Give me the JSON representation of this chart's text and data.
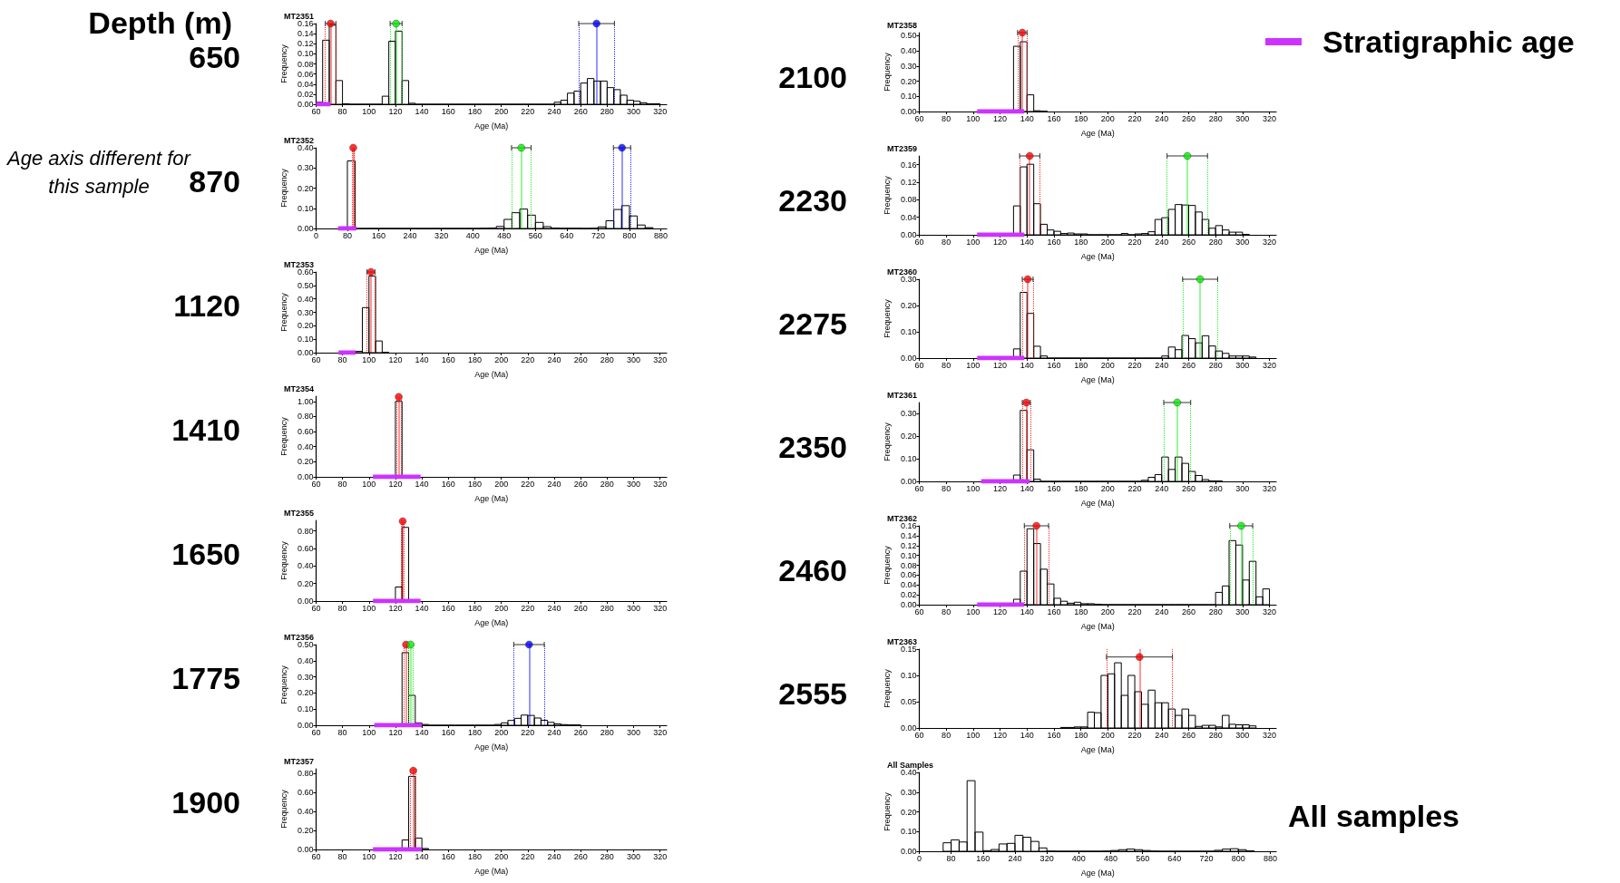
{
  "chart_data": [
    {
      "type": "histogram",
      "title": "MT2351",
      "xlabel": "Age (Ma)",
      "ylabel": "Frequency",
      "color": "#000000",
      "annotations": [
        "650",
        "Depth (m)"
      ],
      "bins": [
        60,
        65,
        70,
        75,
        80,
        85,
        90,
        95,
        100,
        105,
        110,
        115,
        120,
        125,
        130,
        135,
        140,
        145,
        150,
        155,
        160,
        165,
        170,
        175,
        180,
        185,
        190,
        195,
        200,
        205,
        210,
        215,
        220,
        225,
        230,
        235,
        240,
        245,
        250,
        255,
        260,
        265,
        270,
        275,
        280,
        285,
        290,
        295,
        300,
        305,
        310,
        315,
        320
      ],
      "values": [
        0.004,
        0.127,
        0.157,
        0.047,
        0.001,
        0,
        0,
        0,
        0,
        0,
        0.016,
        0.125,
        0.145,
        0.047,
        0.002,
        0,
        0,
        0,
        0,
        0,
        0,
        0,
        0,
        0,
        0,
        0,
        0,
        0,
        0,
        0,
        0,
        0,
        0,
        0,
        0,
        0,
        0.004,
        0.008,
        0.022,
        0.026,
        0.042,
        0.051,
        0.046,
        0.046,
        0.033,
        0.029,
        0.018,
        0.008,
        0.006,
        0.003,
        0.001,
        0.001
      ],
      "series": [
        {
          "type": "scatter",
          "color": "#ff0000",
          "x": [
            71
          ],
          "values": [
            0.16
          ],
          "xerrors": [
            4
          ]
        },
        {
          "type": "scatter",
          "color": "#00ee00",
          "x": [
            120.5
          ],
          "values": [
            0.16
          ],
          "xerrors": [
            4.5
          ]
        },
        {
          "type": "scatter",
          "color": "#0000ff",
          "x": [
            272
          ],
          "values": [
            0.16
          ],
          "xerrors": [
            13.5
          ]
        },
        {
          "type": "line",
          "color": "#cc33ff",
          "x": [
            60,
            71
          ],
          "values": [
            0,
            0
          ]
        }
      ],
      "ref_lines": [
        {
          "axis": "x",
          "value": 71,
          "color": "#ff0000",
          "line_style": "solid"
        },
        {
          "axis": "x",
          "value": 67,
          "color": "#ff0000",
          "line_style": "dotted"
        },
        {
          "axis": "x",
          "value": 75,
          "color": "#ff0000",
          "line_style": "dotted"
        },
        {
          "axis": "x",
          "value": 120.5,
          "color": "#00ee00",
          "line_style": "solid"
        },
        {
          "axis": "x",
          "value": 116,
          "color": "#00ee00",
          "line_style": "dotted"
        },
        {
          "axis": "x",
          "value": 125,
          "color": "#00ee00",
          "line_style": "dotted"
        },
        {
          "axis": "x",
          "value": 272,
          "color": "#0000ff",
          "line_style": "solid"
        },
        {
          "axis": "x",
          "value": 258.5,
          "color": "#0000ff",
          "line_style": "dotted"
        },
        {
          "axis": "x",
          "value": 285.5,
          "color": "#0000ff",
          "line_style": "dotted"
        }
      ],
      "xlim": [
        60,
        325
      ],
      "xticks": [
        60,
        80,
        100,
        120,
        140,
        160,
        180,
        200,
        220,
        240,
        260,
        280,
        300,
        320
      ],
      "ylim": [
        0,
        0.16
      ],
      "yticks": [
        {
          "value": 0,
          "label": "0.00"
        },
        0.02,
        0.04,
        0.06,
        0.08,
        {
          "value": 0.1,
          "label": "0.10"
        },
        0.12,
        0.14,
        0.16
      ]
    },
    {
      "type": "histogram",
      "title": "MT2352",
      "xlabel": "Age (Ma)",
      "ylabel": "Frequency",
      "color": "#000000",
      "annotations": [
        "870",
        "Age axis different for this sample"
      ],
      "bins": [
        80,
        100,
        120,
        140,
        160,
        180,
        200,
        220,
        240,
        260,
        280,
        300,
        320,
        340,
        360,
        380,
        400,
        420,
        440,
        460,
        480,
        500,
        520,
        540,
        560,
        580,
        600,
        620,
        640,
        660,
        680,
        700,
        720,
        740,
        760,
        780,
        800,
        820,
        840,
        860
      ],
      "values": [
        0.335,
        0,
        0,
        0,
        0,
        0,
        0,
        0,
        0,
        0,
        0,
        0,
        0,
        0,
        0,
        0,
        0,
        0.001,
        0.002,
        0.01,
        0.045,
        0.078,
        0.096,
        0.066,
        0.03,
        0.009,
        0.002,
        0.001,
        0.001,
        0.001,
        0,
        0.001,
        0.008,
        0.038,
        0.094,
        0.113,
        0.062,
        0.017,
        0.004
      ],
      "series": [
        {
          "type": "scatter",
          "color": "#ff0000",
          "x": [
            95
          ],
          "values": [
            0.4
          ]
        },
        {
          "type": "scatter",
          "color": "#00ee00",
          "x": [
            524
          ],
          "values": [
            0.4
          ],
          "xerrors": [
            25
          ]
        },
        {
          "type": "scatter",
          "color": "#0000ff",
          "x": [
            781
          ],
          "values": [
            0.4
          ],
          "xerrors": [
            22
          ]
        },
        {
          "type": "line",
          "color": "#cc33ff",
          "x": [
            56,
            103
          ],
          "values": [
            0,
            0
          ]
        }
      ],
      "ref_lines": [
        {
          "axis": "x",
          "value": 95,
          "color": "#ff0000",
          "line_style": "solid"
        },
        {
          "axis": "x",
          "value": 92,
          "color": "#ff0000",
          "line_style": "dotted"
        },
        {
          "axis": "x",
          "value": 98,
          "color": "#ff0000",
          "line_style": "dotted"
        },
        {
          "axis": "x",
          "value": 524,
          "color": "#00ee00",
          "line_style": "solid"
        },
        {
          "axis": "x",
          "value": 499,
          "color": "#00ee00",
          "line_style": "dotted"
        },
        {
          "axis": "x",
          "value": 549,
          "color": "#00ee00",
          "line_style": "dotted"
        },
        {
          "axis": "x",
          "value": 781,
          "color": "#0000ff",
          "line_style": "solid"
        },
        {
          "axis": "x",
          "value": 759,
          "color": "#0000ff",
          "line_style": "dotted"
        },
        {
          "axis": "x",
          "value": 803,
          "color": "#0000ff",
          "line_style": "dotted"
        }
      ],
      "xlim": [
        0,
        895
      ],
      "xticks": [
        0,
        80,
        160,
        240,
        320,
        400,
        480,
        560,
        640,
        720,
        800,
        880
      ],
      "ylim": [
        0,
        0.4
      ],
      "yticks": [
        {
          "value": 0,
          "label": "0.00"
        },
        {
          "value": 0.1,
          "label": "0.10"
        },
        {
          "value": 0.2,
          "label": "0.20"
        },
        {
          "value": 0.3,
          "label": "0.30"
        },
        {
          "value": 0.4,
          "label": "0.40"
        }
      ]
    },
    {
      "type": "histogram",
      "title": "MT2353",
      "xlabel": "Age (Ma)",
      "ylabel": "Frequency",
      "color": "#000000",
      "annotations": [
        "1120"
      ],
      "bins": [
        90,
        95,
        100,
        105,
        110,
        115
      ],
      "values": [
        0.01,
        0.335,
        0.57,
        0.087,
        0.002
      ],
      "series": [
        {
          "type": "scatter",
          "color": "#ff0000",
          "x": [
            101.5
          ],
          "values": [
            0.6
          ],
          "xerrors": [
            3
          ]
        },
        {
          "type": "line",
          "color": "#cc33ff",
          "x": [
            77,
            90
          ],
          "values": [
            0,
            0
          ]
        }
      ],
      "ref_lines": [
        {
          "axis": "x",
          "value": 101.5,
          "color": "#ff0000",
          "line_style": "solid"
        },
        {
          "axis": "x",
          "value": 98.5,
          "color": "#ff0000",
          "line_style": "dotted"
        },
        {
          "axis": "x",
          "value": 104.5,
          "color": "#ff0000",
          "line_style": "dotted"
        }
      ],
      "xlim": [
        60,
        325
      ],
      "xticks": [
        60,
        80,
        100,
        120,
        140,
        160,
        180,
        200,
        220,
        240,
        260,
        280,
        300,
        320
      ],
      "ylim": [
        0,
        0.6
      ],
      "yticks": [
        {
          "value": 0,
          "label": "0.00"
        },
        {
          "value": 0.1,
          "label": "0.10"
        },
        {
          "value": 0.2,
          "label": "0.20"
        },
        {
          "value": 0.3,
          "label": "0.30"
        },
        {
          "value": 0.4,
          "label": "0.40"
        },
        {
          "value": 0.5,
          "label": "0.50"
        },
        {
          "value": 0.6,
          "label": "0.60"
        }
      ]
    },
    {
      "type": "histogram",
      "title": "MT2354",
      "xlabel": "Age (Ma)",
      "ylabel": "Frequency",
      "color": "#000000",
      "annotations": [
        "1410"
      ],
      "bins": [
        120,
        125
      ],
      "values": [
        1.0
      ],
      "series": [
        {
          "type": "scatter",
          "color": "#ff0000",
          "x": [
            122.5
          ],
          "values": [
            1.06
          ]
        },
        {
          "type": "line",
          "color": "#cc33ff",
          "x": [
            103,
            139
          ],
          "values": [
            0,
            0
          ]
        }
      ],
      "ref_lines": [
        {
          "axis": "x",
          "value": 122.5,
          "color": "#ff0000",
          "line_style": "solid"
        },
        {
          "axis": "x",
          "value": 121,
          "color": "#ff0000",
          "line_style": "dotted"
        },
        {
          "axis": "x",
          "value": 124,
          "color": "#ff0000",
          "line_style": "dotted"
        }
      ],
      "xlim": [
        60,
        325
      ],
      "xticks": [
        60,
        80,
        100,
        120,
        140,
        160,
        180,
        200,
        220,
        240,
        260,
        280,
        300,
        320
      ],
      "ylim": [
        0,
        1.07
      ],
      "yticks": [
        {
          "value": 0,
          "label": "0.00"
        },
        {
          "value": 0.2,
          "label": "0.20"
        },
        {
          "value": 0.4,
          "label": "0.40"
        },
        {
          "value": 0.6,
          "label": "0.60"
        },
        {
          "value": 0.8,
          "label": "0.80"
        },
        {
          "value": 1,
          "label": "1.00"
        }
      ]
    },
    {
      "type": "histogram",
      "title": "MT2355",
      "xlabel": "Age (Ma)",
      "ylabel": "Frequency",
      "color": "#000000",
      "annotations": [
        "1650"
      ],
      "bins": [
        120,
        125,
        130
      ],
      "values": [
        0.16,
        0.84
      ],
      "series": [
        {
          "type": "scatter",
          "color": "#ff0000",
          "x": [
            125.5
          ],
          "values": [
            0.91
          ]
        },
        {
          "type": "line",
          "color": "#cc33ff",
          "x": [
            103,
            139
          ],
          "values": [
            0,
            0
          ]
        }
      ],
      "ref_lines": [
        {
          "axis": "x",
          "value": 125.5,
          "color": "#ff0000",
          "line_style": "solid"
        },
        {
          "axis": "x",
          "value": 124.5,
          "color": "#ff0000",
          "line_style": "dotted"
        },
        {
          "axis": "x",
          "value": 126.5,
          "color": "#ff0000",
          "line_style": "dotted"
        }
      ],
      "xlim": [
        60,
        325
      ],
      "xticks": [
        60,
        80,
        100,
        120,
        140,
        160,
        180,
        200,
        220,
        240,
        260,
        280,
        300,
        320
      ],
      "ylim": [
        0,
        0.92
      ],
      "yticks": [
        {
          "value": 0,
          "label": "0.00"
        },
        {
          "value": 0.2,
          "label": "0.20"
        },
        {
          "value": 0.4,
          "label": "0.40"
        },
        {
          "value": 0.6,
          "label": "0.60"
        },
        {
          "value": 0.8,
          "label": "0.80"
        }
      ]
    },
    {
      "type": "histogram",
      "title": "MT2356",
      "xlabel": "Age (Ma)",
      "ylabel": "Frequency",
      "color": "#000000",
      "annotations": [
        "1775"
      ],
      "bins": [
        125,
        130,
        135,
        140,
        145,
        150,
        155,
        160,
        165,
        170,
        175,
        180,
        185,
        190,
        195,
        200,
        205,
        210,
        215,
        220,
        225,
        230,
        235,
        240,
        245,
        250,
        255,
        260
      ],
      "values": [
        0.45,
        0.185,
        0.015,
        0.005,
        0,
        0,
        0,
        0,
        0,
        0,
        0,
        0,
        0,
        0,
        0.005,
        0.015,
        0.03,
        0.043,
        0.063,
        0.061,
        0.045,
        0.031,
        0.018,
        0.009,
        0.004,
        0.002,
        0.002
      ],
      "series": [
        {
          "type": "scatter",
          "color": "#ff0000",
          "x": [
            128
          ],
          "values": [
            0.5
          ]
        },
        {
          "type": "scatter",
          "color": "#00ee00",
          "x": [
            131.5
          ],
          "values": [
            0.5
          ]
        },
        {
          "type": "scatter",
          "color": "#0000ff",
          "x": [
            221
          ],
          "values": [
            0.5
          ],
          "xerrors": [
            11.5
          ]
        },
        {
          "type": "line",
          "color": "#cc33ff",
          "x": [
            104,
            140
          ],
          "values": [
            0,
            0
          ]
        }
      ],
      "ref_lines": [
        {
          "axis": "x",
          "value": 128,
          "color": "#ff0000",
          "line_style": "solid"
        },
        {
          "axis": "x",
          "value": 126.5,
          "color": "#ff0000",
          "line_style": "dotted"
        },
        {
          "axis": "x",
          "value": 129.5,
          "color": "#ff0000",
          "line_style": "dotted"
        },
        {
          "axis": "x",
          "value": 131.5,
          "color": "#00ee00",
          "line_style": "solid"
        },
        {
          "axis": "x",
          "value": 130,
          "color": "#00ee00",
          "line_style": "dotted"
        },
        {
          "axis": "x",
          "value": 133,
          "color": "#00ee00",
          "line_style": "dotted"
        },
        {
          "axis": "x",
          "value": 221,
          "color": "#0000ff",
          "line_style": "solid"
        },
        {
          "axis": "x",
          "value": 209.5,
          "color": "#0000ff",
          "line_style": "dotted"
        },
        {
          "axis": "x",
          "value": 232.5,
          "color": "#0000ff",
          "line_style": "dotted"
        }
      ],
      "xlim": [
        60,
        325
      ],
      "xticks": [
        60,
        80,
        100,
        120,
        140,
        160,
        180,
        200,
        220,
        240,
        260,
        280,
        300,
        320
      ],
      "ylim": [
        0,
        0.5
      ],
      "yticks": [
        {
          "value": 0,
          "label": "0.00"
        },
        {
          "value": 0.1,
          "label": "0.10"
        },
        {
          "value": 0.2,
          "label": "0.20"
        },
        {
          "value": 0.3,
          "label": "0.30"
        },
        {
          "value": 0.4,
          "label": "0.40"
        },
        {
          "value": 0.5,
          "label": "0.50"
        }
      ]
    },
    {
      "type": "histogram",
      "title": "MT2357",
      "xlabel": "Age (Ma)",
      "ylabel": "Frequency",
      "color": "#000000",
      "annotations": [
        "1900"
      ],
      "bins": [
        125,
        130,
        135,
        140,
        145
      ],
      "values": [
        0.1,
        0.77,
        0.12,
        0.01
      ],
      "series": [
        {
          "type": "scatter",
          "color": "#ff0000",
          "x": [
            133.5
          ],
          "values": [
            0.83
          ]
        },
        {
          "type": "line",
          "color": "#cc33ff",
          "x": [
            103,
            140
          ],
          "values": [
            0,
            0
          ]
        }
      ],
      "ref_lines": [
        {
          "axis": "x",
          "value": 133.5,
          "color": "#ff0000",
          "line_style": "solid"
        },
        {
          "axis": "x",
          "value": 131.5,
          "color": "#ff0000",
          "line_style": "dotted"
        },
        {
          "axis": "x",
          "value": 135.5,
          "color": "#ff0000",
          "line_style": "dotted"
        }
      ],
      "xlim": [
        60,
        325
      ],
      "xticks": [
        60,
        80,
        100,
        120,
        140,
        160,
        180,
        200,
        220,
        240,
        260,
        280,
        300,
        320
      ],
      "ylim": [
        0,
        0.85
      ],
      "yticks": [
        {
          "value": 0,
          "label": "0.00"
        },
        {
          "value": 0.2,
          "label": "0.20"
        },
        {
          "value": 0.4,
          "label": "0.40"
        },
        {
          "value": 0.6,
          "label": "0.60"
        },
        {
          "value": 0.8,
          "label": "0.80"
        }
      ]
    },
    {
      "type": "histogram",
      "title": "MT2358",
      "xlabel": "Age (Ma)",
      "ylabel": "Frequency",
      "color": "#000000",
      "annotations": [
        "2100"
      ],
      "bins": [
        130,
        135,
        140,
        145,
        150,
        155
      ],
      "values": [
        0.43,
        0.46,
        0.11,
        0.005,
        0.002
      ],
      "series": [
        {
          "type": "scatter",
          "color": "#ff0000",
          "x": [
            136.5
          ],
          "values": [
            0.52
          ],
          "xerrors": [
            3.5
          ]
        },
        {
          "type": "line",
          "color": "#cc33ff",
          "x": [
            103,
            138
          ],
          "values": [
            0,
            0
          ]
        }
      ],
      "ref_lines": [
        {
          "axis": "x",
          "value": 136.5,
          "color": "#ff0000",
          "line_style": "solid"
        },
        {
          "axis": "x",
          "value": 133,
          "color": "#ff0000",
          "line_style": "dotted"
        },
        {
          "axis": "x",
          "value": 140,
          "color": "#ff0000",
          "line_style": "dotted"
        }
      ],
      "xlim": [
        60,
        325
      ],
      "xticks": [
        60,
        80,
        100,
        120,
        140,
        160,
        180,
        200,
        220,
        240,
        260,
        280,
        300,
        320
      ],
      "ylim": [
        0,
        0.52
      ],
      "yticks": [
        {
          "value": 0,
          "label": "0.00"
        },
        {
          "value": 0.1,
          "label": "0.10"
        },
        {
          "value": 0.2,
          "label": "0.20"
        },
        {
          "value": 0.3,
          "label": "0.30"
        },
        {
          "value": 0.4,
          "label": "0.40"
        },
        {
          "value": 0.5,
          "label": "0.50"
        }
      ]
    },
    {
      "type": "histogram",
      "title": "MT2359",
      "xlabel": "Age (Ma)",
      "ylabel": "Frequency",
      "color": "#000000",
      "annotations": [
        "2230"
      ],
      "bins": [
        130,
        135,
        140,
        145,
        150,
        155,
        160,
        165,
        170,
        175,
        180,
        185,
        190,
        195,
        200,
        205,
        210,
        215,
        220,
        225,
        230,
        235,
        240,
        245,
        250,
        255,
        260,
        265,
        270,
        275,
        280,
        285,
        290,
        295,
        300,
        305
      ],
      "values": [
        0.066,
        0.155,
        0.161,
        0.071,
        0.024,
        0.011,
        0.008,
        0.003,
        0.004,
        0.002,
        0.002,
        0,
        0,
        0,
        0,
        0,
        0.003,
        0,
        0.002,
        0.003,
        0.007,
        0.035,
        0.039,
        0.058,
        0.069,
        0.068,
        0.067,
        0.052,
        0.035,
        0.015,
        0.021,
        0.011,
        0.006,
        0.006,
        0.001
      ],
      "series": [
        {
          "type": "scatter",
          "color": "#ff0000",
          "x": [
            142
          ],
          "values": [
            0.18
          ],
          "xerrors": [
            7.5
          ]
        },
        {
          "type": "scatter",
          "color": "#00ee00",
          "x": [
            259
          ],
          "values": [
            0.18
          ],
          "xerrors": [
            15
          ]
        },
        {
          "type": "line",
          "color": "#cc33ff",
          "x": [
            103,
            138
          ],
          "values": [
            0,
            0
          ]
        }
      ],
      "ref_lines": [
        {
          "axis": "x",
          "value": 142,
          "color": "#ff0000",
          "line_style": "solid"
        },
        {
          "axis": "x",
          "value": 134.5,
          "color": "#ff0000",
          "line_style": "dotted"
        },
        {
          "axis": "x",
          "value": 149.5,
          "color": "#ff0000",
          "line_style": "dotted"
        },
        {
          "axis": "x",
          "value": 259,
          "color": "#00ee00",
          "line_style": "solid"
        },
        {
          "axis": "x",
          "value": 244,
          "color": "#00ee00",
          "line_style": "dotted"
        },
        {
          "axis": "x",
          "value": 274,
          "color": "#00ee00",
          "line_style": "dotted"
        }
      ],
      "xlim": [
        60,
        325
      ],
      "xticks": [
        60,
        80,
        100,
        120,
        140,
        160,
        180,
        200,
        220,
        240,
        260,
        280,
        300,
        320
      ],
      "ylim": [
        0,
        0.18
      ],
      "yticks": [
        {
          "value": 0,
          "label": "0.00"
        },
        0.04,
        0.08,
        0.12,
        0.16
      ]
    },
    {
      "type": "histogram",
      "title": "MT2360",
      "xlabel": "Age (Ma)",
      "ylabel": "Frequency",
      "color": "#000000",
      "annotations": [
        "2275"
      ],
      "bins": [
        130,
        135,
        140,
        145,
        150,
        155,
        160,
        165,
        170,
        175,
        180,
        185,
        190,
        195,
        200,
        205,
        210,
        215,
        220,
        225,
        230,
        235,
        240,
        245,
        250,
        255,
        260,
        265,
        270,
        275,
        280,
        285,
        290,
        295,
        300,
        305,
        310
      ],
      "values": [
        0.035,
        0.25,
        0.17,
        0.045,
        0.008,
        0,
        0,
        0,
        0,
        0,
        0,
        0,
        0,
        0,
        0,
        0,
        0,
        0,
        0,
        0,
        0,
        0,
        0.008,
        0.042,
        0.032,
        0.086,
        0.074,
        0.058,
        0.085,
        0.046,
        0.027,
        0.018,
        0.008,
        0.008,
        0.008,
        0.004
      ],
      "series": [
        {
          "type": "scatter",
          "color": "#ff0000",
          "x": [
            140.5
          ],
          "values": [
            0.3
          ],
          "xerrors": [
            4
          ]
        },
        {
          "type": "scatter",
          "color": "#00ee00",
          "x": [
            268.5
          ],
          "values": [
            0.3
          ],
          "xerrors": [
            13
          ]
        },
        {
          "type": "line",
          "color": "#cc33ff",
          "x": [
            103,
            138
          ],
          "values": [
            0,
            0
          ]
        }
      ],
      "ref_lines": [
        {
          "axis": "x",
          "value": 140.5,
          "color": "#ff0000",
          "line_style": "solid"
        },
        {
          "axis": "x",
          "value": 136.5,
          "color": "#ff0000",
          "line_style": "dotted"
        },
        {
          "axis": "x",
          "value": 144.5,
          "color": "#ff0000",
          "line_style": "dotted"
        },
        {
          "axis": "x",
          "value": 268.5,
          "color": "#00ee00",
          "line_style": "solid"
        },
        {
          "axis": "x",
          "value": 255.5,
          "color": "#00ee00",
          "line_style": "dotted"
        },
        {
          "axis": "x",
          "value": 281.5,
          "color": "#00ee00",
          "line_style": "dotted"
        }
      ],
      "xlim": [
        60,
        325
      ],
      "xticks": [
        60,
        80,
        100,
        120,
        140,
        160,
        180,
        200,
        220,
        240,
        260,
        280,
        300,
        320
      ],
      "ylim": [
        0,
        0.3
      ],
      "yticks": [
        {
          "value": 0,
          "label": "0.00"
        },
        {
          "value": 0.1,
          "label": "0.10"
        },
        {
          "value": 0.2,
          "label": "0.20"
        },
        {
          "value": 0.3,
          "label": "0.30"
        }
      ]
    },
    {
      "type": "histogram",
      "title": "MT2361",
      "xlabel": "Age (Ma)",
      "ylabel": "Frequency",
      "color": "#000000",
      "annotations": [
        "2350"
      ],
      "bins": [
        130,
        135,
        140,
        145,
        150,
        155,
        160,
        165,
        170,
        175,
        180,
        185,
        190,
        195,
        200,
        205,
        210,
        215,
        220,
        225,
        230,
        235,
        240,
        245,
        250,
        255,
        260,
        265,
        270,
        275,
        280,
        285
      ],
      "values": [
        0.028,
        0.315,
        0.14,
        0.01,
        0,
        0,
        0,
        0,
        0,
        0,
        0,
        0,
        0,
        0,
        0,
        0,
        0,
        0,
        0,
        0.005,
        0.018,
        0.03,
        0.108,
        0.053,
        0.108,
        0.08,
        0.044,
        0.026,
        0.008,
        0.002,
        0.002
      ],
      "series": [
        {
          "type": "scatter",
          "color": "#ff0000",
          "x": [
            139.5
          ],
          "values": [
            0.35
          ],
          "xerrors": [
            3
          ]
        },
        {
          "type": "scatter",
          "color": "#00ee00",
          "x": [
            251.5
          ],
          "values": [
            0.35
          ],
          "xerrors": [
            10
          ]
        },
        {
          "type": "line",
          "color": "#cc33ff",
          "x": [
            106,
            142
          ],
          "values": [
            0,
            0
          ]
        }
      ],
      "ref_lines": [
        {
          "axis": "x",
          "value": 139.5,
          "color": "#ff0000",
          "line_style": "solid"
        },
        {
          "axis": "x",
          "value": 136.5,
          "color": "#ff0000",
          "line_style": "dotted"
        },
        {
          "axis": "x",
          "value": 142.5,
          "color": "#ff0000",
          "line_style": "dotted"
        },
        {
          "axis": "x",
          "value": 251.5,
          "color": "#00ee00",
          "line_style": "solid"
        },
        {
          "axis": "x",
          "value": 241.5,
          "color": "#00ee00",
          "line_style": "dotted"
        },
        {
          "axis": "x",
          "value": 261.5,
          "color": "#00ee00",
          "line_style": "dotted"
        }
      ],
      "xlim": [
        60,
        325
      ],
      "xticks": [
        60,
        80,
        100,
        120,
        140,
        160,
        180,
        200,
        220,
        240,
        260,
        280,
        300,
        320
      ],
      "ylim": [
        0,
        0.35
      ],
      "yticks": [
        {
          "value": 0,
          "label": "0.00"
        },
        {
          "value": 0.1,
          "label": "0.10"
        },
        {
          "value": 0.2,
          "label": "0.20"
        },
        {
          "value": 0.3,
          "label": "0.30"
        }
      ]
    },
    {
      "type": "histogram",
      "title": "MT2362",
      "xlabel": "Age (Ma)",
      "ylabel": "Frequency",
      "color": "#000000",
      "annotations": [
        "2460"
      ],
      "bins": [
        130,
        135,
        140,
        145,
        150,
        155,
        160,
        165,
        170,
        175,
        180,
        185,
        190,
        195,
        200,
        205,
        210,
        215,
        220,
        225,
        230,
        235,
        240,
        245,
        250,
        255,
        260,
        265,
        270,
        275,
        280,
        285,
        290,
        295,
        300,
        305,
        310,
        315,
        320
      ],
      "values": [
        0.011,
        0.068,
        0.154,
        0.124,
        0.072,
        0.042,
        0.013,
        0.007,
        0.003,
        0.005,
        0.002,
        0.002,
        0.001,
        0,
        0,
        0,
        0,
        0,
        0,
        0,
        0,
        0,
        0,
        0,
        0,
        0,
        0,
        0,
        0,
        0,
        0.025,
        0.038,
        0.13,
        0.121,
        0.05,
        0.088,
        0.016,
        0.032
      ],
      "series": [
        {
          "type": "scatter",
          "color": "#ff0000",
          "x": [
            147
          ],
          "values": [
            0.16
          ],
          "xerrors": [
            9
          ]
        },
        {
          "type": "scatter",
          "color": "#00ee00",
          "x": [
            299
          ],
          "values": [
            0.16
          ],
          "xerrors": [
            8.5
          ]
        },
        {
          "type": "line",
          "color": "#cc33ff",
          "x": [
            103,
            138
          ],
          "values": [
            0,
            0
          ]
        }
      ],
      "ref_lines": [
        {
          "axis": "x",
          "value": 147,
          "color": "#ff0000",
          "line_style": "solid"
        },
        {
          "axis": "x",
          "value": 138,
          "color": "#ff0000",
          "line_style": "dotted"
        },
        {
          "axis": "x",
          "value": 156,
          "color": "#ff0000",
          "line_style": "dotted"
        },
        {
          "axis": "x",
          "value": 299,
          "color": "#00ee00",
          "line_style": "solid"
        },
        {
          "axis": "x",
          "value": 290.5,
          "color": "#00ee00",
          "line_style": "dotted"
        },
        {
          "axis": "x",
          "value": 307.5,
          "color": "#00ee00",
          "line_style": "dotted"
        }
      ],
      "xlim": [
        60,
        325
      ],
      "xticks": [
        60,
        80,
        100,
        120,
        140,
        160,
        180,
        200,
        220,
        240,
        260,
        280,
        300,
        320
      ],
      "ylim": [
        0,
        0.16
      ],
      "yticks": [
        {
          "value": 0,
          "label": "0.00"
        },
        0.02,
        0.04,
        0.06,
        0.08,
        {
          "value": 0.1,
          "label": "0.10"
        },
        0.12,
        0.14,
        0.16
      ]
    },
    {
      "type": "histogram",
      "title": "MT2363",
      "xlabel": "Age (Ma)",
      "ylabel": "Frequency",
      "color": "#000000",
      "annotations": [
        "2555"
      ],
      "bins": [
        165,
        170,
        175,
        180,
        185,
        190,
        195,
        200,
        205,
        210,
        215,
        220,
        225,
        230,
        235,
        240,
        245,
        250,
        255,
        260,
        265,
        270,
        275,
        280,
        285,
        290,
        295,
        300,
        305,
        310
      ],
      "values": [
        0.001,
        0.001,
        0.002,
        0.002,
        0.03,
        0.029,
        0.1,
        0.103,
        0.124,
        0.062,
        0.1,
        0.069,
        0.045,
        0.072,
        0.048,
        0.048,
        0.036,
        0.024,
        0.036,
        0.024,
        0.003,
        0.005,
        0.005,
        0.002,
        0.024,
        0.007,
        0.006,
        0.006,
        0.004
      ],
      "series": [
        {
          "type": "scatter",
          "color": "#ff0000",
          "x": [
            223.5
          ],
          "values": [
            0.135
          ],
          "xerrors": [
            24.5
          ]
        }
      ],
      "ref_lines": [
        {
          "axis": "x",
          "value": 223.5,
          "color": "#ff0000",
          "line_style": "solid"
        },
        {
          "axis": "x",
          "value": 199,
          "color": "#ff0000",
          "line_style": "dotted"
        },
        {
          "axis": "x",
          "value": 248,
          "color": "#ff0000",
          "line_style": "dotted"
        }
      ],
      "xlim": [
        60,
        325
      ],
      "xticks": [
        60,
        80,
        100,
        120,
        140,
        160,
        180,
        200,
        220,
        240,
        260,
        280,
        300,
        320
      ],
      "ylim": [
        0,
        0.15
      ],
      "yticks": [
        {
          "value": 0,
          "label": "0.00"
        },
        0.05,
        {
          "value": 0.1,
          "label": "0.10"
        },
        0.15
      ]
    },
    {
      "type": "histogram",
      "title": "All Samples",
      "xlabel": "Age (Ma)",
      "ylabel": "Frequency",
      "color": "#000000",
      "annotations": [
        "All samples"
      ],
      "bins": [
        60,
        80,
        100,
        120,
        140,
        160,
        180,
        200,
        220,
        240,
        260,
        280,
        300,
        320,
        340,
        360,
        380,
        400,
        420,
        440,
        460,
        480,
        500,
        520,
        540,
        560,
        580,
        600,
        620,
        640,
        660,
        680,
        700,
        720,
        740,
        760,
        780,
        800,
        820,
        840
      ],
      "values": [
        0.043,
        0.058,
        0.047,
        0.358,
        0.097,
        0.003,
        0.009,
        0.037,
        0.04,
        0.081,
        0.071,
        0.05,
        0.017,
        0.001,
        0,
        0,
        0,
        0,
        0,
        0,
        0.001,
        0.004,
        0.008,
        0.011,
        0.008,
        0.004,
        0.001,
        0,
        0,
        0,
        0,
        0,
        0,
        0,
        0.005,
        0.011,
        0.013,
        0.008,
        0.002
      ],
      "xlim": [
        0,
        895
      ],
      "xticks": [
        0,
        80,
        160,
        240,
        320,
        400,
        480,
        560,
        640,
        720,
        800,
        880
      ],
      "ylim": [
        0,
        0.4
      ],
      "yticks": [
        {
          "value": 0,
          "label": "0.00"
        },
        {
          "value": 0.1,
          "label": "0.10"
        },
        {
          "value": 0.2,
          "label": "0.20"
        },
        {
          "value": 0.3,
          "label": "0.30"
        },
        {
          "value": 0.4,
          "label": "0.40"
        }
      ]
    },
    {
      "type": "other",
      "series": [
        {
          "name": "Stratigraphic age",
          "color": "#cc33ff"
        }
      ]
    }
  ]
}
